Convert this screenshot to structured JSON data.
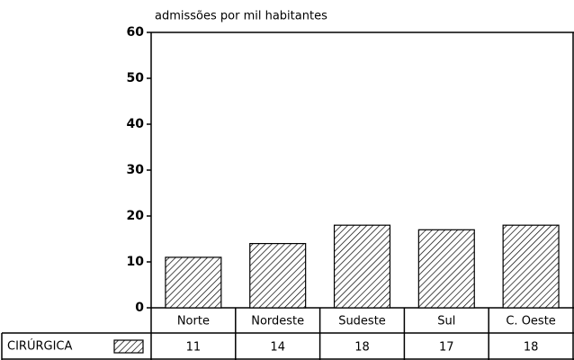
{
  "chart_data": {
    "type": "bar",
    "title": "admissões por mil habitantes",
    "categories": [
      "Norte",
      "Nordeste",
      "Sudeste",
      "Sul",
      "C. Oeste"
    ],
    "series": [
      {
        "name": "CIRÚRGICA",
        "color": "#000000",
        "values": [
          11,
          14,
          18,
          17,
          18
        ]
      }
    ],
    "ylim": [
      0,
      60
    ],
    "yticks": [
      0,
      10,
      20,
      30,
      40,
      50,
      60
    ],
    "grid": false
  }
}
